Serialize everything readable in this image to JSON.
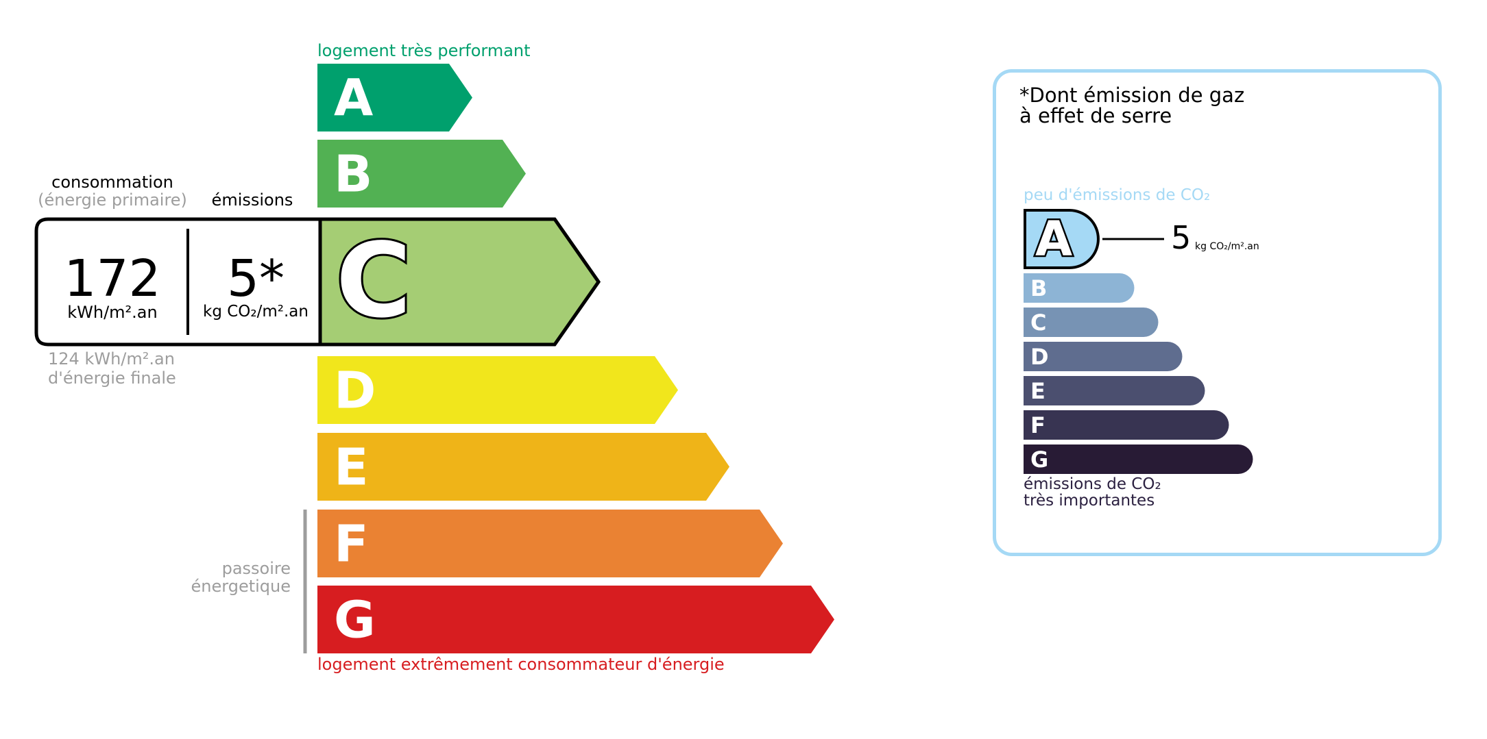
{
  "energy": {
    "top_label": "logement très performant",
    "bottom_label": "logement extrêmement consommateur d'énergie",
    "classes": [
      {
        "letter": "A",
        "color": "#00a06d"
      },
      {
        "letter": "B",
        "color": "#52b153"
      },
      {
        "letter": "C",
        "color": "#a5cd74"
      },
      {
        "letter": "D",
        "color": "#f1e61c"
      },
      {
        "letter": "E",
        "color": "#efb418"
      },
      {
        "letter": "F",
        "color": "#ea8233"
      },
      {
        "letter": "G",
        "color": "#d71d20"
      }
    ],
    "current_class": "C",
    "consumption_label": "consommation",
    "consumption_sublabel": "(énergie primaire)",
    "emissions_label": "émissions",
    "consumption_value": "172",
    "consumption_unit": "kWh/m².an",
    "emissions_value": "5*",
    "emissions_unit": "kg CO₂/m².an",
    "final_energy_value": "124 kWh/m².an",
    "final_energy_label": "d'énergie finale",
    "passoire_line1": "passoire",
    "passoire_line2": "énergetique"
  },
  "ges": {
    "title_line1": "*Dont émission de gaz",
    "title_line2": "à effet de serre",
    "top_label": "peu d'émissions de CO₂",
    "bottom_line1": "émissions de CO₂",
    "bottom_line2": "très importantes",
    "current_class": "A",
    "value": "5",
    "unit": "kg CO₂/m².an",
    "border_color": "#a5d9f5",
    "classes": [
      {
        "letter": "A",
        "color": "#a5d9f5"
      },
      {
        "letter": "B",
        "color": "#8db4d5"
      },
      {
        "letter": "C",
        "color": "#7793b4"
      },
      {
        "letter": "D",
        "color": "#5f6d8f"
      },
      {
        "letter": "E",
        "color": "#4b4f6f"
      },
      {
        "letter": "F",
        "color": "#383452"
      },
      {
        "letter": "G",
        "color": "#281b35"
      }
    ]
  }
}
